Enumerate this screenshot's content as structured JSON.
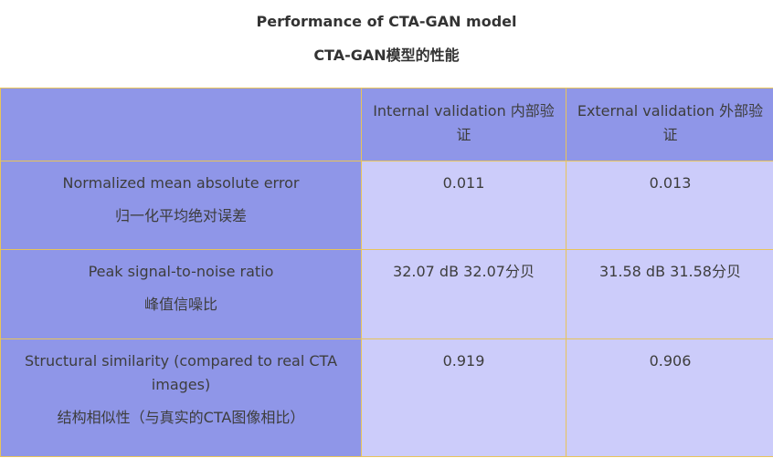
{
  "title": {
    "en": "Performance of CTA-GAN model",
    "zh": "CTA-GAN模型的性能"
  },
  "table": {
    "headers": [
      "",
      "Internal validation 内部验证",
      "External validation  外部验证"
    ],
    "rows": [
      {
        "metric_en": "Normalized mean absolute error",
        "metric_zh": "归一化平均绝对误差",
        "internal": "0.011",
        "external": "0.013"
      },
      {
        "metric_en": "Peak signal-to-noise ratio",
        "metric_zh": "峰值信噪比",
        "internal": "32.07 dB 32.07分贝",
        "external": "31.58 dB 31.58分贝"
      },
      {
        "metric_en": "Structural similarity (compared to real CTA images)",
        "metric_zh": "结构相似性（与真实的CTA图像相比）",
        "internal": "0.919",
        "external": "0.906"
      }
    ]
  },
  "colors": {
    "label_cell_bg": "#8f96e8",
    "value_cell_bg": "#ccccfa",
    "border": "#e8c45a"
  }
}
